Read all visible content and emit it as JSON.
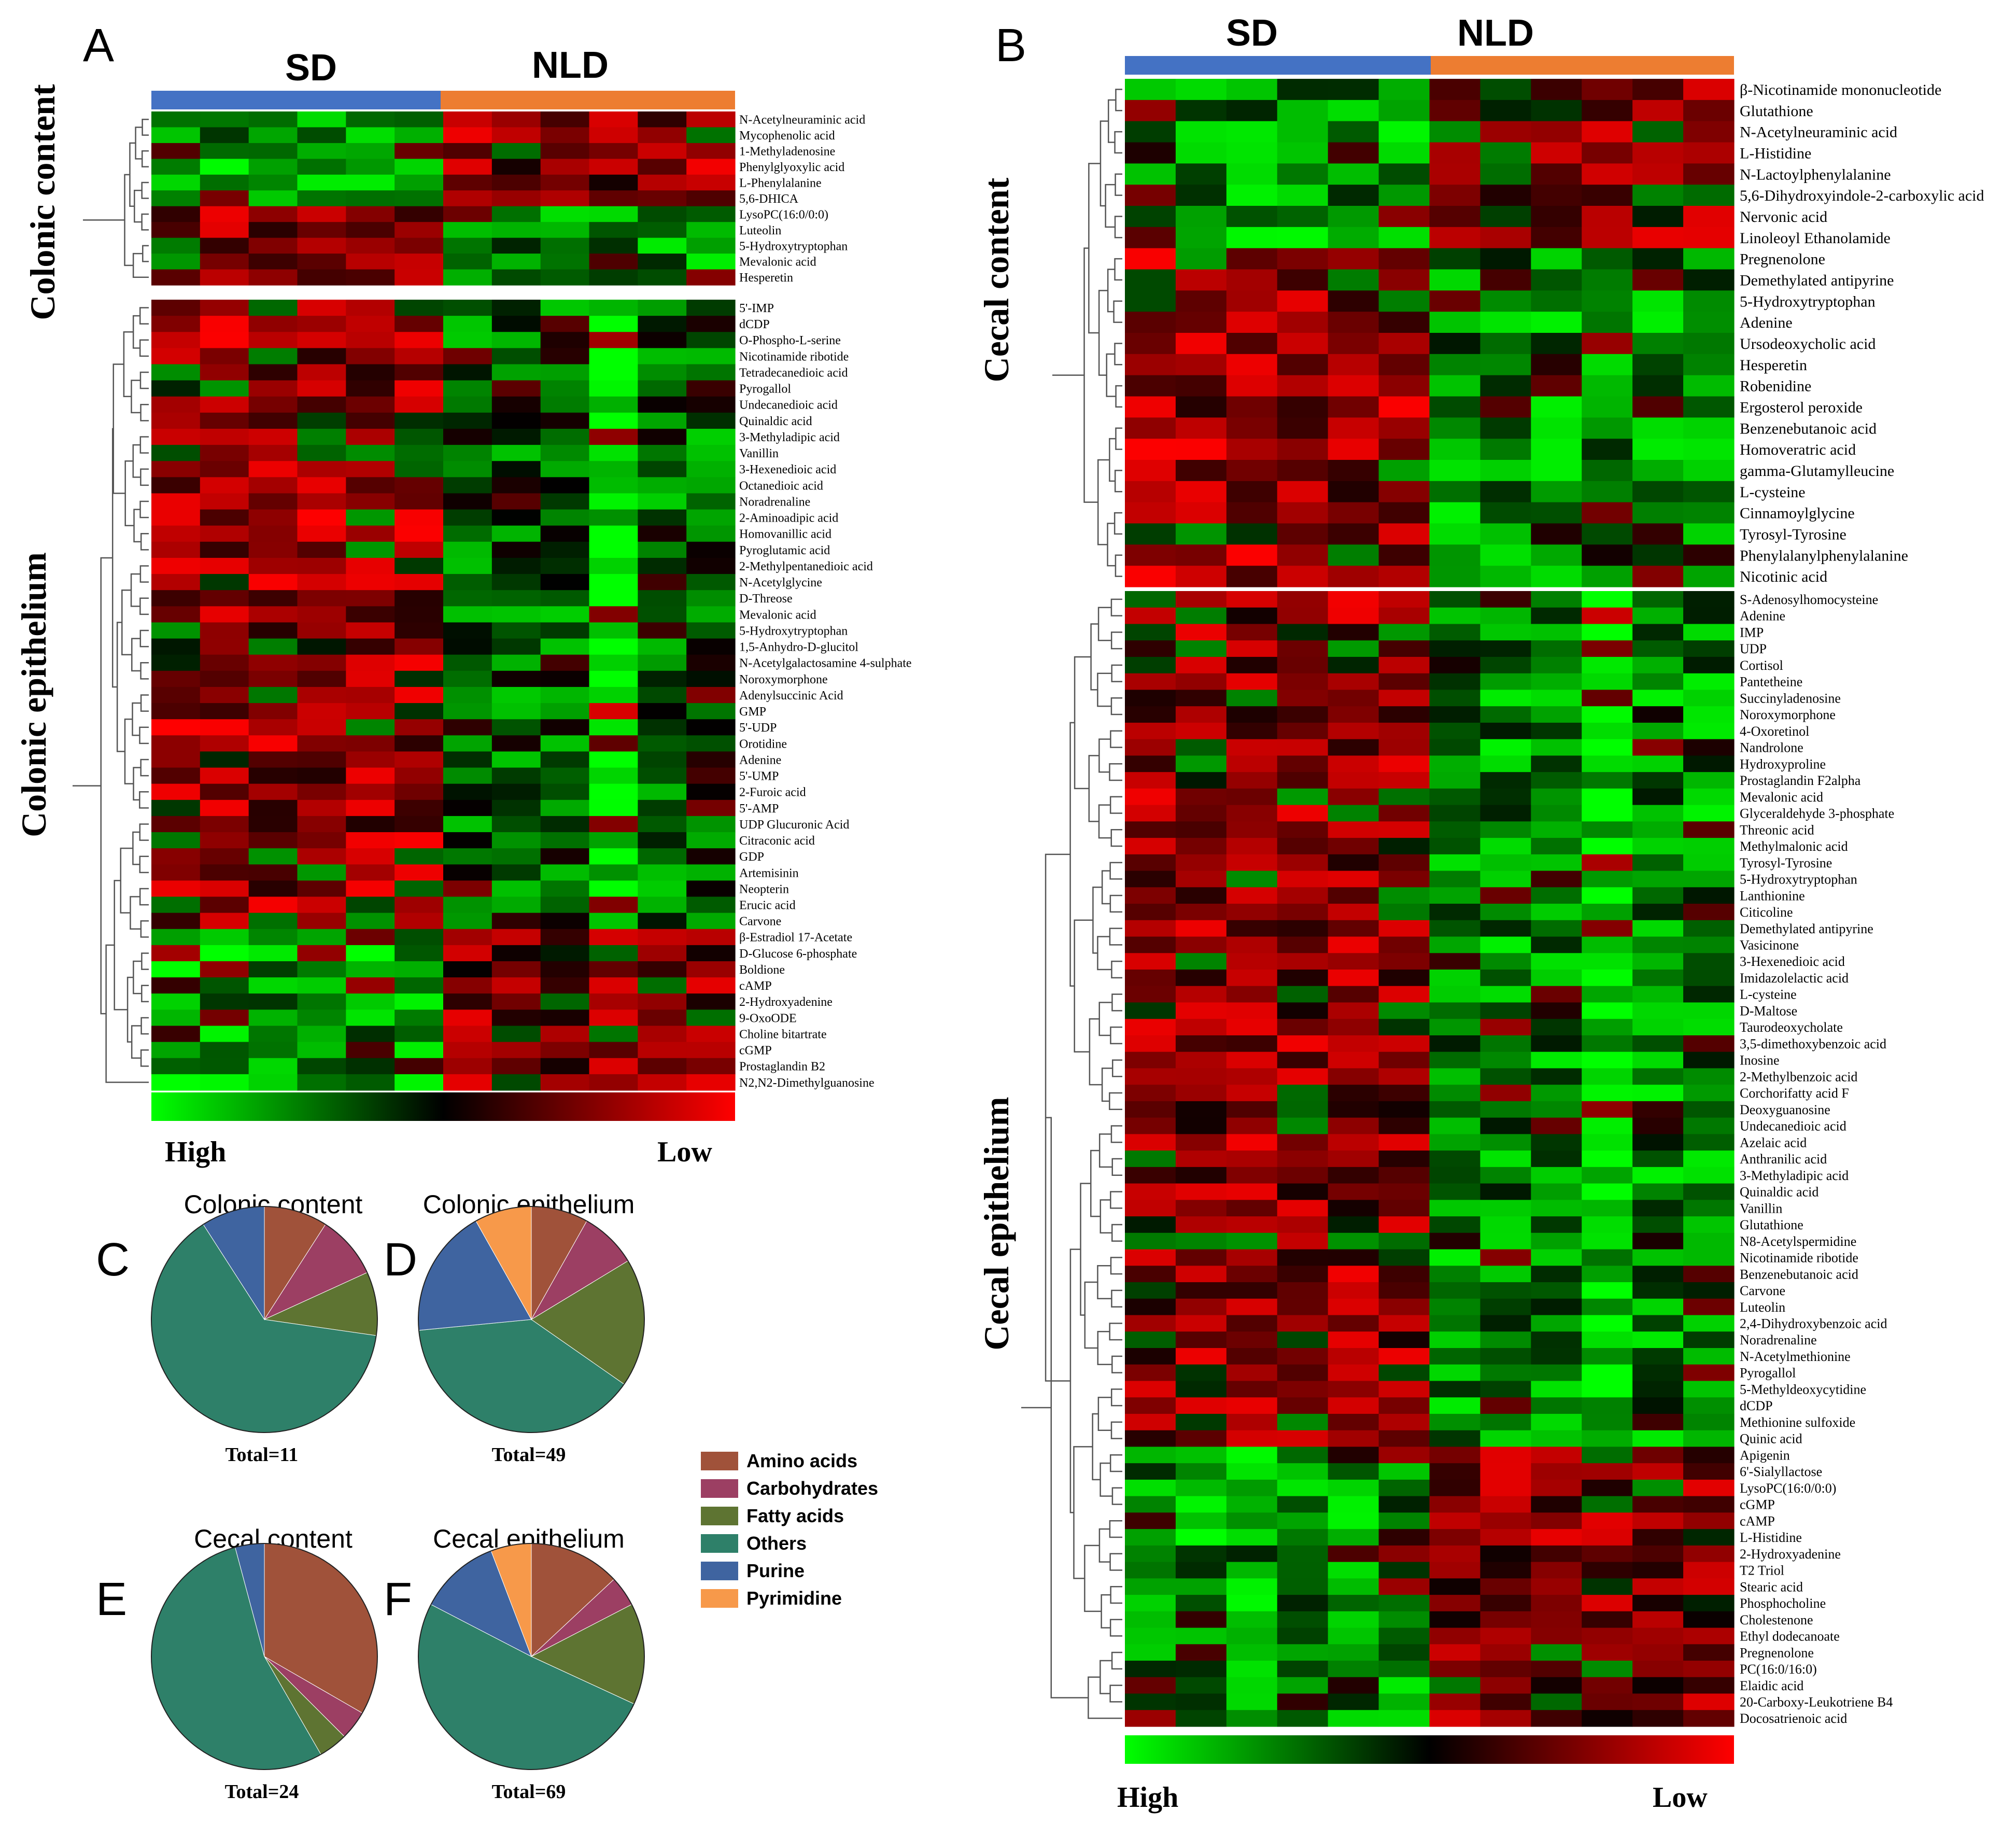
{
  "colors": {
    "sd": "#4472c4",
    "nld": "#ed7d31",
    "high": "#00ff00",
    "low": "#ff0000",
    "amino": "#a0523a",
    "carb": "#9c3f63",
    "fatty": "#5e7432",
    "others": "#2e8069",
    "purine": "#3f64a0",
    "pyrimidine": "#f7994a"
  },
  "panels": {
    "A": {
      "letter": "A",
      "group_sd": "SD",
      "group_nld": "NLD",
      "sections": [
        {
          "title": "Colonic content",
          "metabolites": [
            "N-Acetylneuraminic acid",
            "Mycophenolic acid",
            "1-Methyladenosine",
            "Phenylglyoxylic acid",
            "L-Phenylalanine",
            "5,6-DHICA",
            "LysoPC(16:0/0:0)",
            "Luteolin",
            "5-Hydroxytryptophan",
            "Mevalonic acid",
            "Hesperetin"
          ]
        },
        {
          "title": "Colonic epithelium",
          "metabolites": [
            "5'-IMP",
            "dCDP",
            "O-Phospho-L-serine",
            "Nicotinamide ribotide",
            "Tetradecanedioic acid",
            "Pyrogallol",
            "Undecanedioic acid",
            "Quinaldic acid",
            "3-Methyladipic acid",
            "Vanillin",
            "3-Hexenedioic acid",
            "Octanedioic acid",
            "Noradrenaline",
            "2-Aminoadipic acid",
            "Homovanillic acid",
            "Pyroglutamic acid",
            "2-Methylpentanedioic acid",
            "N-Acetylglycine",
            "D-Threose",
            "Mevalonic acid",
            "5-Hydroxytryptophan",
            "1,5-Anhydro-D-glucitol",
            "N-Acetylgalactosamine 4-sulphate",
            "Noroxymorphone",
            "Adenylsuccinic Acid",
            "GMP",
            "5'-UDP",
            "Orotidine",
            "Adenine",
            "5'-UMP",
            "2-Furoic acid",
            "5'-AMP",
            "UDP Glucuronic Acid",
            "Citraconic acid",
            "GDP",
            "Artemisinin",
            "Neopterin",
            "Erucic acid",
            "Carvone",
            "β-Estradiol 17-Acetate",
            "D-Glucose 6-phosphate",
            "Boldione",
            "cAMP",
            "2-Hydroxyadenine",
            "9-OxoODE",
            "Choline bitartrate",
            "cGMP",
            "Prostaglandin B2",
            "N2,N2-Dimethylguanosine"
          ]
        }
      ],
      "scale_high": "High",
      "scale_low": "Low"
    },
    "B": {
      "letter": "B",
      "group_sd": "SD",
      "group_nld": "NLD",
      "sections": [
        {
          "title": "Cecal content",
          "metabolites": [
            "β-Nicotinamide mononucleotide",
            "Glutathione",
            "N-Acetylneuraminic acid",
            "L-Histidine",
            "N-Lactoylphenylalanine",
            "5,6-Dihydroxyindole-2-carboxylic acid",
            "Nervonic acid",
            "Linoleoyl Ethanolamide",
            "Pregnenolone",
            "Demethylated antipyrine",
            "5-Hydroxytryptophan",
            "Adenine",
            "Ursodeoxycholic acid",
            "Hesperetin",
            "Robenidine",
            "Ergosterol peroxide",
            "Benzenebutanoic acid",
            "Homoveratric acid",
            "gamma-Glutamylleucine",
            "L-cysteine",
            "Cinnamoylglycine",
            "Tyrosyl-Tyrosine",
            "Phenylalanylphenylalanine",
            "Nicotinic acid"
          ]
        },
        {
          "title": "Cecal epithelium",
          "metabolites": [
            "S-Adenosylhomocysteine",
            "Adenine",
            "IMP",
            "UDP",
            "Cortisol",
            "Pantetheine",
            "Succinyladenosine",
            "Noroxymorphone",
            "4-Oxoretinol",
            "Nandrolone",
            "Hydroxyproline",
            "Prostaglandin F2alpha",
            "Mevalonic acid",
            "Glyceraldehyde 3-phosphate",
            "Threonic acid",
            "Methylmalonic acid",
            "Tyrosyl-Tyrosine",
            "5-Hydroxytryptophan",
            "Lanthionine",
            "Citicoline",
            "Demethylated antipyrine",
            "Vasicinone",
            "3-Hexenedioic acid",
            "Imidazolelactic acid",
            "L-cysteine",
            "D-Maltose",
            "Taurodeoxycholate",
            "3,5-dimethoxybenzoic acid",
            "Inosine",
            "2-Methylbenzoic acid",
            "Corchorifatty acid F",
            "Deoxyguanosine",
            "Undecanedioic acid",
            "Azelaic acid",
            "Anthranilic acid",
            "3-Methyladipic acid",
            "Quinaldic acid",
            "Vanillin",
            "Glutathione",
            "N8-Acetylspermidine",
            "Nicotinamide ribotide",
            "Benzenebutanoic acid",
            "Carvone",
            "Luteolin",
            "2,4-Dihydroxybenzoic acid",
            "Noradrenaline",
            "N-Acetylmethionine",
            "Pyrogallol",
            "5-Methyldeoxycytidine",
            "dCDP",
            "Methionine sulfoxide",
            "Quinic acid",
            "Apigenin",
            "6'-Sialyllactose",
            "LysoPC(16:0/0:0)",
            "cGMP",
            "cAMP",
            "L-Histidine",
            "2-Hydroxyadenine",
            "T2 Triol",
            "Stearic acid",
            "Phosphocholine",
            "Cholestenone",
            "Ethyl dodecanoate",
            "Pregnenolone",
            "PC(16:0/16:0)",
            "Elaidic acid",
            "20-Carboxy-Leukotriene B4",
            "Docosatrienoic acid"
          ]
        }
      ],
      "scale_high": "High",
      "scale_low": "Low"
    }
  },
  "pies": [
    {
      "letter": "C",
      "title": "Colonic content",
      "total_label": "Total=11"
    },
    {
      "letter": "D",
      "title": "Colonic epithelium",
      "total_label": "Total=49"
    },
    {
      "letter": "E",
      "title": "Cecal content",
      "total_label": "Total=24"
    },
    {
      "letter": "F",
      "title": "Cecal epithelium",
      "total_label": "Total=69"
    }
  ],
  "legend": [
    "Amino acids",
    "Carbohydrates",
    "Fatty acids",
    "Others",
    "Purine",
    "Pyrimidine"
  ],
  "chart_data": [
    {
      "type": "heatmap",
      "title": "Colonic content",
      "rows": 11,
      "columns": 12,
      "groups": [
        {
          "name": "SD",
          "samples": 6
        },
        {
          "name": "NLD",
          "samples": 6
        }
      ],
      "color_scale": [
        "High",
        "Low"
      ]
    },
    {
      "type": "heatmap",
      "title": "Colonic epithelium",
      "rows": 49,
      "columns": 12,
      "groups": [
        {
          "name": "SD",
          "samples": 6
        },
        {
          "name": "NLD",
          "samples": 6
        }
      ],
      "color_scale": [
        "High",
        "Low"
      ]
    },
    {
      "type": "heatmap",
      "title": "Cecal content",
      "rows": 24,
      "columns": 12,
      "groups": [
        {
          "name": "SD",
          "samples": 6
        },
        {
          "name": "NLD",
          "samples": 6
        }
      ],
      "color_scale": [
        "High",
        "Low"
      ]
    },
    {
      "type": "heatmap",
      "title": "Cecal epithelium",
      "rows": 69,
      "columns": 12,
      "groups": [
        {
          "name": "SD",
          "samples": 6
        },
        {
          "name": "NLD",
          "samples": 6
        }
      ],
      "color_scale": [
        "High",
        "Low"
      ]
    },
    {
      "type": "pie",
      "title": "Colonic content",
      "total": 11,
      "slices": [
        {
          "label": "Amino acids",
          "value": 1
        },
        {
          "label": "Carbohydrates",
          "value": 1
        },
        {
          "label": "Fatty acids",
          "value": 1
        },
        {
          "label": "Others",
          "value": 7
        },
        {
          "label": "Purine",
          "value": 1
        },
        {
          "label": "Pyrimidine",
          "value": 0
        }
      ]
    },
    {
      "type": "pie",
      "title": "Colonic epithelium",
      "total": 49,
      "slices": [
        {
          "label": "Amino acids",
          "value": 4
        },
        {
          "label": "Carbohydrates",
          "value": 4
        },
        {
          "label": "Fatty acids",
          "value": 9
        },
        {
          "label": "Others",
          "value": 19
        },
        {
          "label": "Purine",
          "value": 9
        },
        {
          "label": "Pyrimidine",
          "value": 4
        }
      ]
    },
    {
      "type": "pie",
      "title": "Cecal content",
      "total": 24,
      "slices": [
        {
          "label": "Amino acids",
          "value": 8
        },
        {
          "label": "Carbohydrates",
          "value": 1
        },
        {
          "label": "Fatty acids",
          "value": 1
        },
        {
          "label": "Others",
          "value": 13
        },
        {
          "label": "Purine",
          "value": 1
        },
        {
          "label": "Pyrimidine",
          "value": 0
        }
      ]
    },
    {
      "type": "pie",
      "title": "Cecal epithelium",
      "total": 69,
      "slices": [
        {
          "label": "Amino acids",
          "value": 9
        },
        {
          "label": "Carbohydrates",
          "value": 3
        },
        {
          "label": "Fatty acids",
          "value": 10
        },
        {
          "label": "Others",
          "value": 35
        },
        {
          "label": "Purine",
          "value": 8
        },
        {
          "label": "Pyrimidine",
          "value": 4
        }
      ]
    }
  ]
}
